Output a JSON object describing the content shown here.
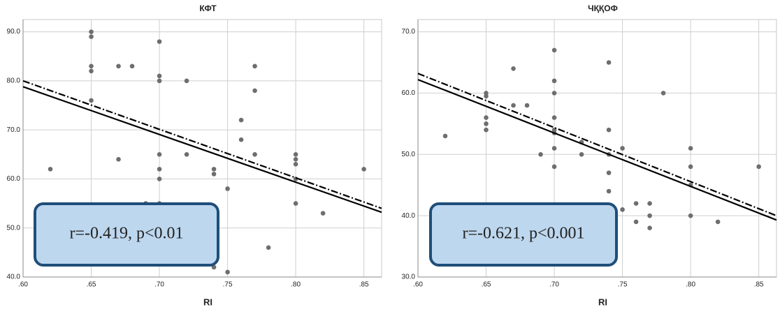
{
  "chart_data": [
    {
      "type": "scatter",
      "title": "КФТ",
      "x_label": "RI",
      "annotation": "r=-0.419, p<0.01",
      "color": "#6e6e6e",
      "grid": true,
      "xlim": [
        0.6,
        0.863
      ],
      "ylim": [
        40,
        92.5
      ],
      "xticks": [
        {
          "value": 0.6,
          "label": ".60"
        },
        {
          "value": 0.65,
          "label": ".65"
        },
        {
          "value": 0.7,
          "label": ".70"
        },
        {
          "value": 0.75,
          "label": ".75"
        },
        {
          "value": 0.8,
          "label": ".80"
        },
        {
          "value": 0.85,
          "label": ".85"
        }
      ],
      "yticks": [
        {
          "value": 40,
          "label": "40.0"
        },
        {
          "value": 50,
          "label": "50.0"
        },
        {
          "value": 60,
          "label": "60.0"
        },
        {
          "value": 70,
          "label": "70.0"
        },
        {
          "value": 80,
          "label": "80.0"
        },
        {
          "value": 90,
          "label": "90.0"
        }
      ],
      "x": [
        0.62,
        0.65,
        0.65,
        0.65,
        0.65,
        0.65,
        0.67,
        0.67,
        0.68,
        0.69,
        0.7,
        0.7,
        0.7,
        0.7,
        0.7,
        0.7,
        0.7,
        0.72,
        0.72,
        0.74,
        0.74,
        0.74,
        0.75,
        0.75,
        0.76,
        0.76,
        0.77,
        0.77,
        0.77,
        0.78,
        0.8,
        0.8,
        0.8,
        0.8,
        0.8,
        0.82,
        0.85
      ],
      "y": [
        62,
        90,
        89,
        83,
        82,
        76,
        83,
        64,
        83,
        55,
        88,
        81,
        80,
        65,
        62,
        60,
        55,
        80,
        65,
        62,
        61,
        42,
        58,
        41,
        72,
        68,
        83,
        78,
        65,
        46,
        65,
        64,
        63,
        60,
        55,
        53,
        62
      ],
      "fit_lines": [
        {
          "style": "solid",
          "x": [
            0.6,
            0.863
          ],
          "y": [
            78.8,
            53.2
          ]
        },
        {
          "style": "dashdot",
          "x": [
            0.6,
            0.863
          ],
          "y": [
            80,
            54
          ]
        }
      ]
    },
    {
      "type": "scatter",
      "title": "ЧҚҚОФ",
      "x_label": "RI",
      "annotation": "r=-0.621, p<0.001",
      "color": "#6e6e6e",
      "grid": true,
      "xlim": [
        0.6,
        0.863
      ],
      "ylim": [
        30,
        72
      ],
      "xticks": [
        {
          "value": 0.6,
          "label": ".60"
        },
        {
          "value": 0.65,
          "label": ".65"
        },
        {
          "value": 0.7,
          "label": ".70"
        },
        {
          "value": 0.75,
          "label": ".75"
        },
        {
          "value": 0.8,
          "label": ".80"
        },
        {
          "value": 0.85,
          "label": ".85"
        }
      ],
      "yticks": [
        {
          "value": 30,
          "label": "30.0"
        },
        {
          "value": 40,
          "label": "40.0"
        },
        {
          "value": 50,
          "label": "50.0"
        },
        {
          "value": 60,
          "label": "60.0"
        },
        {
          "value": 70,
          "label": "70.0"
        }
      ],
      "x": [
        0.62,
        0.65,
        0.65,
        0.65,
        0.65,
        0.65,
        0.67,
        0.67,
        0.68,
        0.69,
        0.7,
        0.7,
        0.7,
        0.7,
        0.7,
        0.7,
        0.7,
        0.7,
        0.72,
        0.72,
        0.74,
        0.74,
        0.74,
        0.74,
        0.74,
        0.75,
        0.75,
        0.76,
        0.76,
        0.77,
        0.77,
        0.77,
        0.78,
        0.8,
        0.8,
        0.8,
        0.8,
        0.82,
        0.85
      ],
      "y": [
        53,
        60,
        59.5,
        56,
        55,
        54,
        64,
        58,
        58,
        50,
        67,
        62,
        60,
        56,
        54,
        53.5,
        51,
        48,
        52,
        50,
        65,
        54,
        50,
        47,
        44,
        51,
        41,
        42,
        39,
        42,
        40,
        38,
        60,
        51,
        48,
        45,
        40,
        39,
        48
      ],
      "fit_lines": [
        {
          "style": "solid",
          "x": [
            0.6,
            0.863
          ],
          "y": [
            62.2,
            39.3
          ]
        },
        {
          "style": "dashdot",
          "x": [
            0.6,
            0.863
          ],
          "y": [
            63.2,
            40
          ]
        }
      ]
    }
  ]
}
